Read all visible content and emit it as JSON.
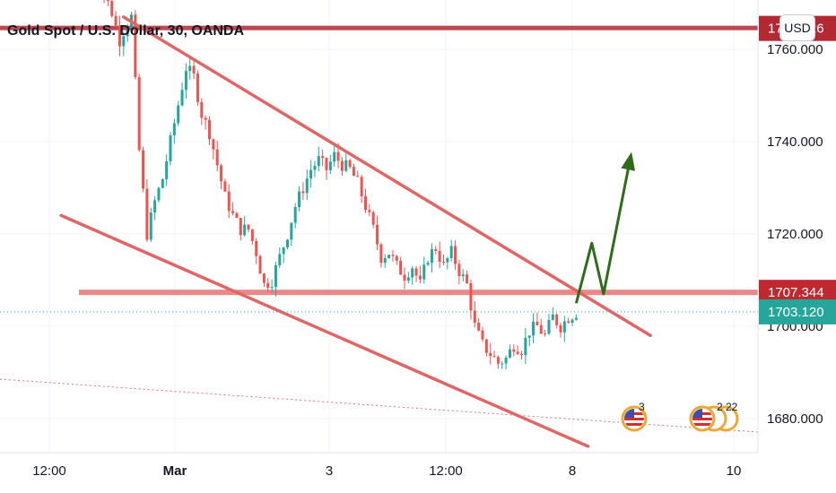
{
  "chart_data": {
    "type": "candlestick",
    "title": "Gold Spot / U.S. Dollar, 30, OANDA",
    "currency_button": "USD",
    "x_tick_labels": [
      "12:00",
      "Mar",
      "3",
      "12:00",
      "8",
      "10"
    ],
    "y_ticks": [
      1680,
      1700,
      1720,
      1740,
      1760
    ],
    "y_tick_labels": [
      "1680.000",
      "1700.000",
      "1720.000",
      "1740.000",
      "1760.000"
    ],
    "ylim": [
      1672,
      1777
    ],
    "grid": true,
    "price_tags": [
      {
        "label": "1764.526",
        "value": 1764.526,
        "color": "#b22833"
      },
      {
        "label": "1707.344",
        "value": 1707.344,
        "color": "#c0282f"
      },
      {
        "label": "1703.120",
        "value": 1703.12,
        "color": "#26a69a"
      }
    ],
    "horizontal_levels": [
      1764.526,
      1707.344
    ],
    "current_price": 1703.12,
    "close_path": [
      [
        0,
        1776
      ],
      [
        3,
        1772
      ],
      [
        5,
        1768
      ],
      [
        7,
        1762
      ],
      [
        8,
        1764
      ],
      [
        10,
        1767
      ],
      [
        12,
        1738
      ],
      [
        14,
        1720
      ],
      [
        16,
        1727
      ],
      [
        18,
        1732
      ],
      [
        20,
        1740
      ],
      [
        22,
        1748
      ],
      [
        24,
        1756
      ],
      [
        26,
        1754
      ],
      [
        28,
        1746
      ],
      [
        30,
        1742
      ],
      [
        32,
        1735
      ],
      [
        34,
        1728
      ],
      [
        36,
        1724
      ],
      [
        38,
        1721
      ],
      [
        40,
        1721
      ],
      [
        42,
        1716
      ],
      [
        44,
        1709
      ],
      [
        46,
        1710
      ],
      [
        48,
        1715
      ],
      [
        50,
        1720
      ],
      [
        52,
        1726
      ],
      [
        54,
        1730
      ],
      [
        56,
        1734
      ],
      [
        58,
        1736
      ],
      [
        60,
        1734
      ],
      [
        62,
        1737
      ],
      [
        64,
        1735
      ],
      [
        66,
        1734
      ],
      [
        68,
        1731
      ],
      [
        70,
        1726
      ],
      [
        72,
        1721
      ],
      [
        74,
        1715
      ],
      [
        76,
        1716
      ],
      [
        78,
        1713
      ],
      [
        80,
        1711
      ],
      [
        82,
        1713
      ],
      [
        84,
        1709
      ],
      [
        86,
        1715
      ],
      [
        88,
        1717
      ],
      [
        90,
        1713
      ],
      [
        92,
        1716
      ],
      [
        94,
        1712
      ],
      [
        96,
        1709
      ],
      [
        98,
        1700
      ],
      [
        100,
        1696
      ],
      [
        102,
        1694
      ],
      [
        104,
        1692
      ],
      [
        106,
        1693
      ],
      [
        108,
        1696
      ],
      [
        110,
        1695
      ],
      [
        112,
        1699
      ],
      [
        114,
        1700
      ],
      [
        116,
        1698
      ],
      [
        118,
        1702
      ],
      [
        120,
        1700
      ],
      [
        122,
        1702
      ],
      [
        124,
        1703
      ]
    ],
    "candle_stats": {
      "count": 125,
      "x_start": 1779,
      "x_end": 1702
    },
    "trend_lines": [
      {
        "name": "upper-channel-line",
        "from": [
          8,
          1767
        ],
        "to": [
          143,
          1698
        ]
      },
      {
        "name": "lower-channel-line",
        "from": [
          -8,
          1724
        ],
        "to": [
          127,
          1674
        ]
      }
    ],
    "forecast_arrow": [
      [
        124,
        1705
      ],
      [
        128,
        1718
      ],
      [
        131,
        1707
      ],
      [
        138,
        1737
      ]
    ],
    "events": [
      {
        "label": "3"
      },
      {
        "label": "2"
      },
      {
        "label": "22"
      }
    ]
  }
}
